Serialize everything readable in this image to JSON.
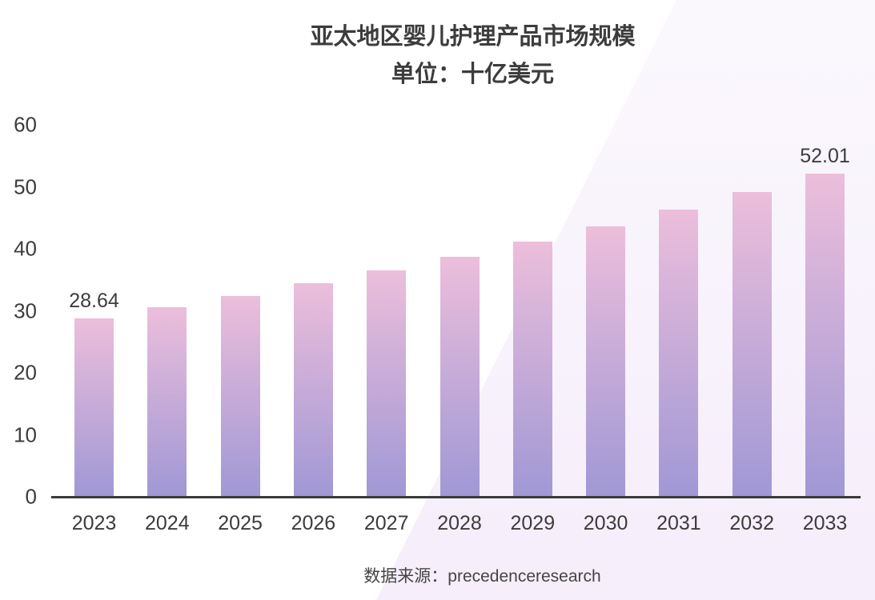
{
  "chart": {
    "title": "亚太地区婴儿护理产品市场规模",
    "subtitle": "单位：十亿美元",
    "source_label": "数据来源：precedenceresearch"
  },
  "chart_data": {
    "type": "bar",
    "title": "亚太地区婴儿护理产品市场规模",
    "subtitle": "单位：十亿美元",
    "source": "数据来源：precedenceresearch",
    "categories": [
      "2023",
      "2024",
      "2025",
      "2026",
      "2027",
      "2028",
      "2029",
      "2030",
      "2031",
      "2032",
      "2033"
    ],
    "values": [
      28.64,
      30.4,
      32.27,
      34.26,
      36.37,
      38.6,
      40.98,
      43.5,
      46.17,
      49.01,
      52.01
    ],
    "bar_labels": [
      "28.64",
      "",
      "",
      "",
      "",
      "",
      "",
      "",
      "",
      "",
      "52.01"
    ],
    "xlabel": "",
    "ylabel": "",
    "ylim": [
      0,
      60
    ],
    "yticks": [
      0,
      10,
      20,
      30,
      40,
      50,
      60
    ],
    "grid": false,
    "legend": false,
    "colors": {
      "bar_gradient_top": "#ecbedb",
      "bar_gradient_bottom": "#a098d5",
      "axis_line": "#3a3a3a",
      "text": "#3c3c3c",
      "background": "#ffffff",
      "band_top": "#fbf8fd",
      "band_bottom": "#f6eefb"
    }
  }
}
